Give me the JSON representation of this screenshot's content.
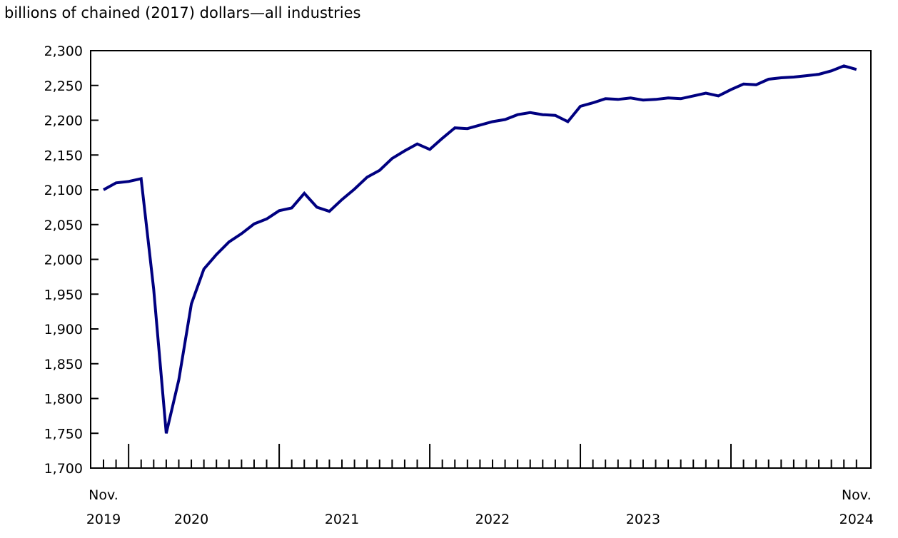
{
  "chart_data": {
    "type": "line",
    "title": "billions of chained (2017) dollars—all industries",
    "xlabel": "",
    "ylabel": "",
    "ylim": [
      1700,
      2300
    ],
    "yticks": [
      1700,
      1750,
      1800,
      1850,
      1900,
      1950,
      2000,
      2050,
      2100,
      2150,
      2200,
      2250,
      2300
    ],
    "ytick_labels": [
      "1,700",
      "1,750",
      "1,800",
      "1,850",
      "1,900",
      "1,950",
      "2,000",
      "2,050",
      "2,100",
      "2,150",
      "2,200",
      "2,250",
      "2,300"
    ],
    "x_start": "2019-11",
    "x_end": "2024-11",
    "xtick_labels": [
      {
        "month": "2019-11",
        "line1": "Nov.",
        "line2": "2019"
      },
      {
        "month": "2020-06",
        "line1": "",
        "line2": "2020"
      },
      {
        "month": "2021-06",
        "line1": "",
        "line2": "2021"
      },
      {
        "month": "2022-06",
        "line1": "",
        "line2": "2022"
      },
      {
        "month": "2023-06",
        "line1": "",
        "line2": "2023"
      },
      {
        "month": "2024-11",
        "line1": "Nov.",
        "line2": "2024"
      }
    ],
    "grid": false,
    "line_color": "#000080",
    "x": [
      "2019-11",
      "2019-12",
      "2020-01",
      "2020-02",
      "2020-03",
      "2020-04",
      "2020-05",
      "2020-06",
      "2020-07",
      "2020-08",
      "2020-09",
      "2020-10",
      "2020-11",
      "2020-12",
      "2021-01",
      "2021-02",
      "2021-03",
      "2021-04",
      "2021-05",
      "2021-06",
      "2021-07",
      "2021-08",
      "2021-09",
      "2021-10",
      "2021-11",
      "2021-12",
      "2022-01",
      "2022-02",
      "2022-03",
      "2022-04",
      "2022-05",
      "2022-06",
      "2022-07",
      "2022-08",
      "2022-09",
      "2022-10",
      "2022-11",
      "2022-12",
      "2023-01",
      "2023-02",
      "2023-03",
      "2023-04",
      "2023-05",
      "2023-06",
      "2023-07",
      "2023-08",
      "2023-09",
      "2023-10",
      "2023-11",
      "2023-12",
      "2024-01",
      "2024-02",
      "2024-03",
      "2024-04",
      "2024-05",
      "2024-06",
      "2024-07",
      "2024-08",
      "2024-09",
      "2024-10",
      "2024-11"
    ],
    "values": [
      2100,
      2110,
      2112,
      2116,
      1957,
      1750,
      1827,
      1936,
      1986,
      2007,
      2025,
      2037,
      2051,
      2058,
      2070,
      2074,
      2095,
      2075,
      2069,
      2086,
      2101,
      2118,
      2128,
      2145,
      2156,
      2166,
      2158,
      2174,
      2189,
      2188,
      2193,
      2198,
      2201,
      2208,
      2211,
      2208,
      2207,
      2198,
      2220,
      2225,
      2231,
      2230,
      2232,
      2229,
      2230,
      2232,
      2231,
      2235,
      2239,
      2235,
      2244,
      2252,
      2251,
      2259,
      2261,
      2262,
      2264,
      2266,
      2271,
      2278,
      2273
    ]
  }
}
